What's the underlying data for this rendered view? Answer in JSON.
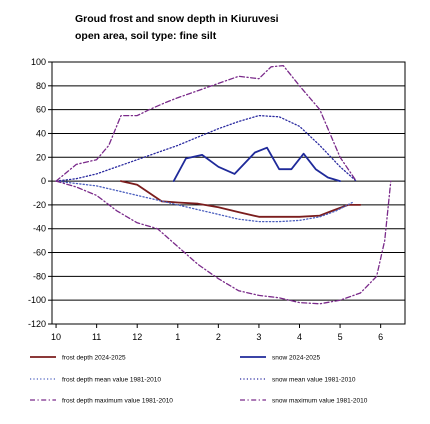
{
  "chart_data": {
    "type": "line",
    "title": "Groud frost and snow depth in Kiuruvesi",
    "subtitle": "open area, soil type: fine silt",
    "xlabel": "",
    "ylabel": "",
    "x_tick_labels": [
      "10",
      "11",
      "12",
      "1",
      "2",
      "3",
      "4",
      "5",
      "6"
    ],
    "x_range": [
      9.9,
      18.6
    ],
    "ylim": [
      -120,
      100
    ],
    "y_ticks": [
      100,
      80,
      60,
      40,
      20,
      0,
      -20,
      -40,
      -60,
      -80,
      -100,
      -120
    ],
    "grid": "horizontal",
    "legend_position": "bottom",
    "series": [
      {
        "name": "frost depth 2024-2025",
        "color": "#7b1d1d",
        "style": "solid",
        "x": [
          11.6,
          12.0,
          12.3,
          12.6,
          13.0,
          13.5,
          14.0,
          14.5,
          15.0,
          15.5,
          16.0,
          16.5,
          16.8,
          17.2,
          17.5
        ],
        "y": [
          0,
          -3,
          -10,
          -17,
          -18,
          -19,
          -22,
          -26,
          -30,
          -30,
          -30,
          -29,
          -25,
          -20,
          -20
        ]
      },
      {
        "name": "snow 2024-2025",
        "color": "#1f2a9a",
        "style": "solid",
        "x": [
          12.9,
          13.2,
          13.6,
          14.0,
          14.4,
          14.9,
          15.2,
          15.5,
          15.8,
          16.1,
          16.4,
          16.7,
          17.0
        ],
        "y": [
          0,
          19,
          22,
          12,
          6,
          24,
          28,
          10,
          10,
          23,
          10,
          3,
          0
        ]
      },
      {
        "name": "frost depth mean value 1981-2010",
        "color": "#4b5fbf",
        "style": "dotted",
        "x": [
          10.0,
          10.5,
          11.0,
          11.5,
          12.0,
          12.5,
          13.0,
          13.5,
          14.0,
          14.5,
          15.0,
          15.5,
          16.0,
          16.5,
          16.9,
          17.3
        ],
        "y": [
          0,
          -2,
          -4,
          -8,
          -12,
          -16,
          -20,
          -24,
          -28,
          -32,
          -34,
          -34,
          -33,
          -30,
          -25,
          -18
        ]
      },
      {
        "name": "snow mean value 1981-2010",
        "color": "#2a2aa0",
        "style": "dotted",
        "x": [
          10.0,
          10.5,
          11.0,
          11.5,
          12.0,
          12.5,
          13.0,
          13.5,
          14.0,
          14.5,
          15.0,
          15.5,
          16.0,
          16.5,
          17.0,
          17.4
        ],
        "y": [
          0,
          2,
          6,
          12,
          18,
          24,
          30,
          37,
          44,
          50,
          55,
          54,
          46,
          30,
          12,
          0
        ]
      },
      {
        "name": "frost depth maximum value 1981-2010",
        "color": "#7a2a8a",
        "style": "dash-dot",
        "x": [
          10.0,
          10.5,
          11.0,
          11.5,
          12.0,
          12.5,
          13.0,
          13.5,
          14.0,
          14.5,
          15.0,
          15.5,
          16.0,
          16.5,
          17.0,
          17.5,
          17.9,
          18.1,
          18.25
        ],
        "y": [
          0,
          -5,
          -12,
          -25,
          -35,
          -40,
          -55,
          -70,
          -82,
          -92,
          -96,
          -98,
          -102,
          -103,
          -100,
          -94,
          -80,
          -50,
          0
        ]
      },
      {
        "name": "snow maximum value 1981-2010",
        "color": "#7a2a8a",
        "style": "dash-dot",
        "x": [
          10.0,
          10.5,
          11.0,
          11.3,
          11.6,
          12.0,
          12.3,
          12.7,
          13.0,
          13.5,
          14.0,
          14.5,
          15.0,
          15.3,
          15.6,
          16.0,
          16.5,
          17.0,
          17.4
        ],
        "y": [
          0,
          14,
          18,
          30,
          55,
          55,
          60,
          66,
          70,
          76,
          82,
          88,
          86,
          96,
          97,
          80,
          60,
          20,
          0
        ]
      }
    ]
  }
}
